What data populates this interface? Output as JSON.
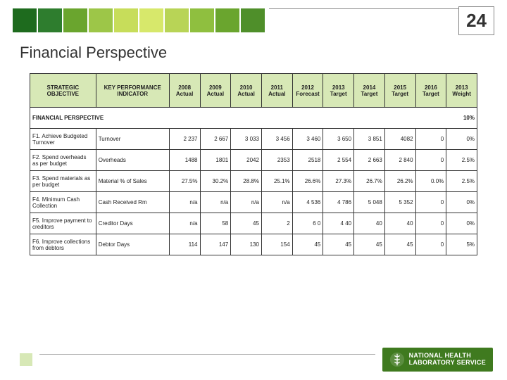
{
  "page_number": "24",
  "title": "Financial Perspective",
  "header_squares": [
    "#1e6b1e",
    "#2e7d2e",
    "#6aa52e",
    "#9dc648",
    "#c7dd5a",
    "#d7e86b",
    "#b8d456",
    "#8fbf3f",
    "#6aa52e",
    "#4f8f2a"
  ],
  "columns": [
    "STRATEGIC OBJECTIVE",
    "KEY PERFORMANCE INDICATOR",
    "2008 Actual",
    "2009 Actual",
    "2010 Actual",
    "2011 Actual",
    "2012 Forecast",
    "2013 Target",
    "2014 Target",
    "2015 Target",
    "2016 Target",
    "2013 Weight"
  ],
  "section": {
    "label": "FINANCIAL PERSPECTIVE",
    "weight": "10%"
  },
  "rows": [
    {
      "objective": "F1. Achieve Budgeted Turnover",
      "kpi": "Turnover",
      "vals": [
        "2 237",
        "2 667",
        "3 033",
        "3 456",
        "3 460",
        "3 650",
        "3 851",
        "4082",
        "0",
        "0%"
      ]
    },
    {
      "objective": "F2. Spend overheads as per budget",
      "kpi": "Overheads",
      "vals": [
        "1488",
        "1801",
        "2042",
        "2353",
        "2518",
        "2 554",
        "2 663",
        "2 840",
        "0",
        "2.5%"
      ]
    },
    {
      "objective": "F3. Spend materials as per budget",
      "kpi": "Material % of Sales",
      "vals": [
        "27.5%",
        "30.2%",
        "28.8%",
        "25.1%",
        "26.6%",
        "27.3%",
        "26.7%",
        "26.2%",
        "0.0%",
        "2.5%"
      ]
    },
    {
      "objective": "F4. Minimum Cash Collection",
      "kpi": "Cash Received Rm",
      "vals": [
        "n/a",
        "n/a",
        "n/a",
        "n/a",
        "4 536",
        "4 786",
        "5 048",
        "5 352",
        "0",
        "0%"
      ]
    },
    {
      "objective": "F5. Improve payment to creditors",
      "kpi": "Creditor Days",
      "vals": [
        "n/a",
        "58",
        "45",
        "2",
        "6 0",
        "4 40",
        "40",
        "40",
        "0",
        "0%"
      ]
    },
    {
      "objective": "F6. Improve collections from debtors",
      "kpi": "Debtor Days",
      "vals": [
        "114",
        "147",
        "130",
        "154",
        "45",
        "45",
        "45",
        "45",
        "0",
        "5%"
      ]
    }
  ],
  "footer_logo": {
    "line1": "NATIONAL HEALTH",
    "line2": "LABORATORY SERVICE"
  },
  "colors": {
    "header_bg": "#d7e8b6",
    "logo_bg": "#3f7a1f"
  }
}
